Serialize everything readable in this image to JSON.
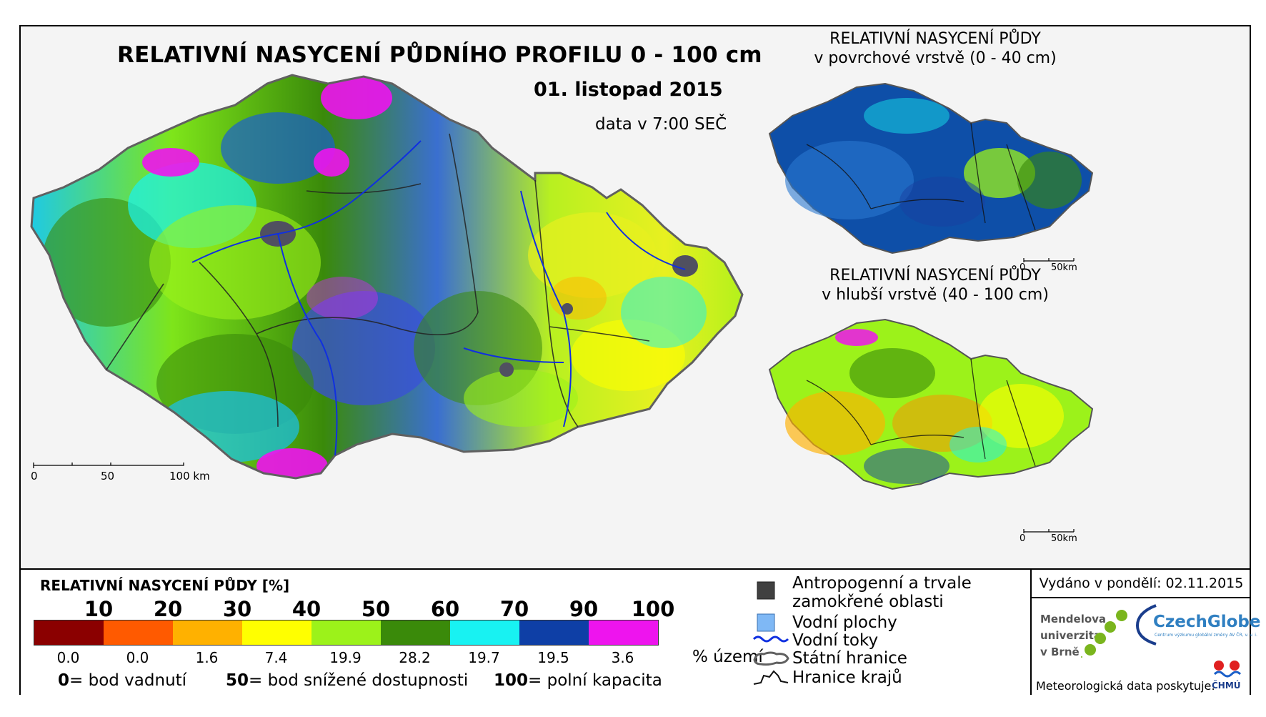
{
  "titles": {
    "main": "RELATIVNÍ NASYCENÍ PŮDNÍHO PROFILU 0 - 100 cm",
    "date": "01. listopad 2015",
    "time": "data v 7:00 SEČ",
    "surface_line1": "RELATIVNÍ NASYCENÍ PŮDY",
    "surface_line2": "v povrchové vrstvě (0 - 40 cm)",
    "deep_line1": "RELATIVNÍ NASYCENÍ PŮDY",
    "deep_line2": "v hlubší vrstvě (40 - 100 cm)"
  },
  "scale_bars": {
    "main": {
      "labels": [
        "0",
        "50",
        "100 km"
      ]
    },
    "surface": {
      "labels": [
        "0",
        "50km"
      ]
    },
    "deep": {
      "labels": [
        "0",
        "50km"
      ]
    }
  },
  "legend": {
    "title": "RELATIVNÍ NASYCENÍ PŮDY [%]",
    "ticks": [
      "10",
      "20",
      "30",
      "40",
      "50",
      "60",
      "70",
      "90",
      "100"
    ],
    "colors": [
      "#8b0000",
      "#ff5a00",
      "#ffb100",
      "#ffff00",
      "#9cf21a",
      "#3a8a0a",
      "#18f2f2",
      "#0e3fa6",
      "#ee14ee"
    ],
    "percentages": [
      "0.0",
      "0.0",
      "1.6",
      "7.4",
      "19.9",
      "28.2",
      "19.7",
      "19.5",
      "3.6"
    ],
    "percent_unit": "% území",
    "notes": [
      {
        "value": "0",
        "text": "= bod vadnutí"
      },
      {
        "value": "50",
        "text": "= bod snížené dostupnosti"
      },
      {
        "value": "100",
        "text": "= polní kapacita"
      }
    ]
  },
  "layers": {
    "anthropogenic_line1": "Antropogenní a trvale",
    "anthropogenic_line2": "zamokřené oblasti",
    "water_bodies": "Vodní plochy",
    "rivers": "Vodní toky",
    "state_border": "Státní hranice",
    "region_border": "Hranice krajů",
    "anthropogenic_color": "#404040",
    "water_color": "#7fb8f5",
    "river_color": "#1030e0"
  },
  "issued": {
    "text": "Vydáno v pondělí: 02.11.2015"
  },
  "credits": {
    "mendel_line1": "Mendelova",
    "mendel_line2": "univerzita",
    "mendel_line3": "v Brně",
    "czechglobe": "CzechGlobe",
    "czechglobe_sub": "Centrum výzkumu globální změny AV ČR, v. v. i.",
    "meteo": "Meteorologická data poskytuje:",
    "chmu": "ČHMÚ"
  }
}
